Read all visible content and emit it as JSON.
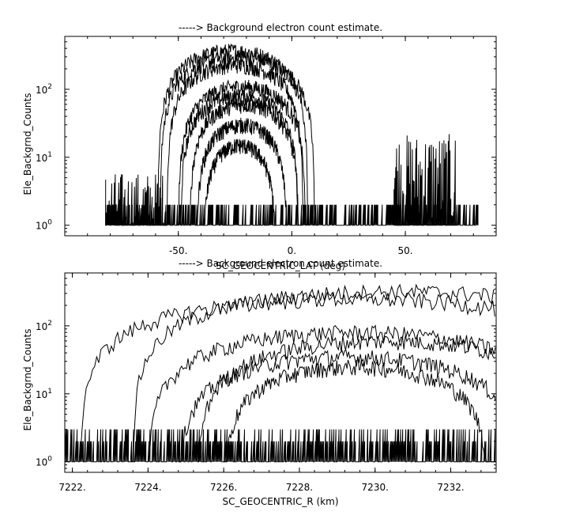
{
  "chart_data": [
    {
      "type": "line",
      "title": "-----> Background electron count estimate.",
      "xlabel": "SC_GEOCENTRIC_LAT (deg)",
      "ylabel": "Ele_Backgrnd_Counts",
      "xlim": [
        -100,
        90
      ],
      "ylim": [
        0.7,
        600
      ],
      "yscale": "log",
      "xticks": [
        -50,
        0,
        50
      ],
      "xticklabels": [
        "-50.",
        "0.",
        "50."
      ],
      "yticks": [
        1,
        10,
        100
      ],
      "yticklabels": [
        "10^0",
        "10^1",
        "10^2"
      ],
      "grid": false,
      "noise_floor": {
        "x_range": [
          -82,
          82
        ],
        "levels": [
          1,
          2
        ]
      },
      "spikes": [
        {
          "x_range": [
            -82,
            -55
          ],
          "max_counts": 6
        },
        {
          "x_range": [
            45,
            72
          ],
          "max_counts": 22
        }
      ],
      "series": [
        {
          "peak_x": -26,
          "peak_counts": 370,
          "half_width": 33
        },
        {
          "peak_x": -24,
          "peak_counts": 300,
          "half_width": 34
        },
        {
          "peak_x": -25,
          "peak_counts": 230,
          "half_width": 30
        },
        {
          "peak_x": -22,
          "peak_counts": 110,
          "half_width": 28
        },
        {
          "peak_x": -23,
          "peak_counts": 80,
          "half_width": 26
        },
        {
          "peak_x": -21,
          "peak_counts": 60,
          "half_width": 24
        },
        {
          "peak_x": -22,
          "peak_counts": 30,
          "half_width": 20
        },
        {
          "peak_x": -23,
          "peak_counts": 15,
          "half_width": 16
        }
      ]
    },
    {
      "type": "line",
      "title": "-----> Background electron count estimate.",
      "xlabel": "SC_GEOCENTRIC_R (km)",
      "ylabel": "Ele_Backgrnd_Counts",
      "xlim": [
        7221.8,
        7233.2
      ],
      "ylim": [
        0.7,
        600
      ],
      "yscale": "log",
      "xticks": [
        7222,
        7224,
        7226,
        7228,
        7230,
        7232
      ],
      "xticklabels": [
        "7222.",
        "7224.",
        "7226.",
        "7228.",
        "7230.",
        "7232."
      ],
      "yticks": [
        1,
        10,
        100
      ],
      "yticklabels": [
        "10^0",
        "10^1",
        "10^2"
      ],
      "grid": false,
      "noise_floor": {
        "x_range": [
          7221.8,
          7233.2
        ],
        "levels": [
          1,
          2,
          3
        ]
      },
      "series": [
        {
          "peak_x": 7230.6,
          "peak_counts": 320,
          "half_width": 7.0
        },
        {
          "peak_x": 7229.4,
          "peak_counts": 250,
          "half_width": 7.2
        },
        {
          "peak_x": 7229.5,
          "peak_counts": 80,
          "half_width": 5.5
        },
        {
          "peak_x": 7230.3,
          "peak_counts": 60,
          "half_width": 5.0
        },
        {
          "peak_x": 7229.3,
          "peak_counts": 35,
          "half_width": 4.5
        },
        {
          "peak_x": 7229.5,
          "peak_counts": 25,
          "half_width": 3.5
        }
      ]
    }
  ]
}
